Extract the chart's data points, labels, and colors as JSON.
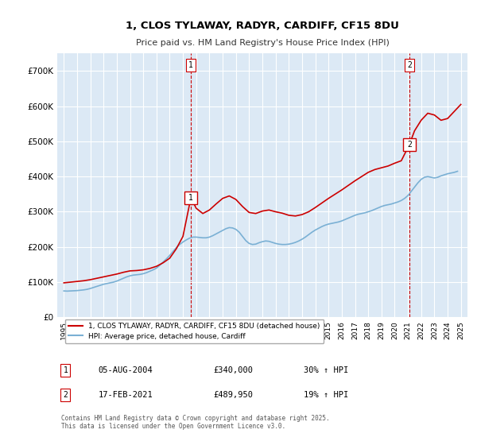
{
  "title": "1, CLOS TYLAWAY, RADYR, CARDIFF, CF15 8DU",
  "subtitle": "Price paid vs. HM Land Registry's House Price Index (HPI)",
  "background_color": "#dce9f5",
  "plot_bg_color": "#dce9f5",
  "red_line_color": "#cc0000",
  "blue_line_color": "#7ab0d4",
  "grid_color": "#ffffff",
  "ylabel_color": "#333333",
  "ylim": [
    0,
    750000
  ],
  "yticks": [
    0,
    100000,
    200000,
    300000,
    400000,
    500000,
    600000,
    700000
  ],
  "ytick_labels": [
    "£0",
    "£100K",
    "£200K",
    "£300K",
    "£400K",
    "£500K",
    "£600K",
    "£700K"
  ],
  "xlim_start": 1994.5,
  "xlim_end": 2025.5,
  "xticks": [
    1995,
    1996,
    1997,
    1998,
    1999,
    2000,
    2001,
    2002,
    2003,
    2004,
    2005,
    2006,
    2007,
    2008,
    2009,
    2010,
    2011,
    2012,
    2013,
    2014,
    2015,
    2016,
    2017,
    2018,
    2019,
    2020,
    2021,
    2022,
    2023,
    2024,
    2025
  ],
  "sale1_x": 2004.6,
  "sale1_y": 340000,
  "sale1_label": "1",
  "sale2_x": 2021.1,
  "sale2_y": 489950,
  "sale2_label": "2",
  "legend_line1": "1, CLOS TYLAWAY, RADYR, CARDIFF, CF15 8DU (detached house)",
  "legend_line2": "HPI: Average price, detached house, Cardiff",
  "table_rows": [
    [
      "1",
      "05-AUG-2004",
      "£340,000",
      "30% ↑ HPI"
    ],
    [
      "2",
      "17-FEB-2021",
      "£489,950",
      "19% ↑ HPI"
    ]
  ],
  "footer": "Contains HM Land Registry data © Crown copyright and database right 2025.\nThis data is licensed under the Open Government Licence v3.0.",
  "hpi_data": {
    "years": [
      1995,
      1995.25,
      1995.5,
      1995.75,
      1996,
      1996.25,
      1996.5,
      1996.75,
      1997,
      1997.25,
      1997.5,
      1997.75,
      1998,
      1998.25,
      1998.5,
      1998.75,
      1999,
      1999.25,
      1999.5,
      1999.75,
      2000,
      2000.25,
      2000.5,
      2000.75,
      2001,
      2001.25,
      2001.5,
      2001.75,
      2002,
      2002.25,
      2002.5,
      2002.75,
      2003,
      2003.25,
      2003.5,
      2003.75,
      2004,
      2004.25,
      2004.5,
      2004.75,
      2005,
      2005.25,
      2005.5,
      2005.75,
      2006,
      2006.25,
      2006.5,
      2006.75,
      2007,
      2007.25,
      2007.5,
      2007.75,
      2008,
      2008.25,
      2008.5,
      2008.75,
      2009,
      2009.25,
      2009.5,
      2009.75,
      2010,
      2010.25,
      2010.5,
      2010.75,
      2011,
      2011.25,
      2011.5,
      2011.75,
      2012,
      2012.25,
      2012.5,
      2012.75,
      2013,
      2013.25,
      2013.5,
      2013.75,
      2014,
      2014.25,
      2014.5,
      2014.75,
      2015,
      2015.25,
      2015.5,
      2015.75,
      2016,
      2016.25,
      2016.5,
      2016.75,
      2017,
      2017.25,
      2017.5,
      2017.75,
      2018,
      2018.25,
      2018.5,
      2018.75,
      2019,
      2019.25,
      2019.5,
      2019.75,
      2020,
      2020.25,
      2020.5,
      2020.75,
      2021,
      2021.25,
      2021.5,
      2021.75,
      2022,
      2022.25,
      2022.5,
      2022.75,
      2023,
      2023.25,
      2023.5,
      2023.75,
      2024,
      2024.25,
      2024.5,
      2024.75
    ],
    "values": [
      75000,
      74500,
      75000,
      75500,
      76000,
      77000,
      78000,
      79500,
      82000,
      85000,
      88000,
      91000,
      94000,
      96000,
      98000,
      100000,
      103000,
      107000,
      111000,
      115000,
      118000,
      120000,
      121000,
      122000,
      124000,
      127000,
      131000,
      135000,
      140000,
      148000,
      157000,
      166000,
      176000,
      187000,
      198000,
      207000,
      214000,
      220000,
      225000,
      228000,
      228000,
      227000,
      226000,
      226000,
      228000,
      232000,
      237000,
      242000,
      247000,
      252000,
      255000,
      254000,
      250000,
      242000,
      230000,
      218000,
      210000,
      207000,
      208000,
      212000,
      215000,
      217000,
      216000,
      213000,
      210000,
      208000,
      207000,
      207000,
      208000,
      210000,
      213000,
      217000,
      222000,
      228000,
      235000,
      242000,
      248000,
      253000,
      258000,
      262000,
      265000,
      267000,
      269000,
      271000,
      274000,
      278000,
      282000,
      286000,
      290000,
      293000,
      295000,
      297000,
      300000,
      303000,
      307000,
      311000,
      315000,
      318000,
      320000,
      322000,
      325000,
      328000,
      332000,
      338000,
      346000,
      358000,
      370000,
      382000,
      392000,
      398000,
      400000,
      398000,
      396000,
      398000,
      402000,
      405000,
      408000,
      410000,
      412000,
      415000
    ]
  },
  "price_data": {
    "years": [
      1995,
      1995.5,
      1996,
      1996.5,
      1997,
      1997.5,
      1998,
      1998.5,
      1999,
      1999.5,
      2000,
      2000.5,
      2001,
      2001.5,
      2002,
      2002.5,
      2003,
      2003.5,
      2004,
      2004.6,
      2005,
      2005.5,
      2006,
      2006.5,
      2007,
      2007.5,
      2008,
      2008.5,
      2009,
      2009.5,
      2010,
      2010.5,
      2011,
      2011.5,
      2012,
      2012.5,
      2013,
      2013.5,
      2014,
      2014.5,
      2015,
      2015.5,
      2016,
      2016.5,
      2017,
      2017.5,
      2018,
      2018.5,
      2019,
      2019.5,
      2020,
      2020.5,
      2021.1,
      2021.5,
      2022,
      2022.5,
      2023,
      2023.5,
      2024,
      2024.5,
      2025
    ],
    "values": [
      98000,
      100000,
      102000,
      104000,
      107000,
      111000,
      115000,
      119000,
      123000,
      128000,
      132000,
      133000,
      135000,
      139000,
      145000,
      155000,
      168000,
      195000,
      230000,
      340000,
      310000,
      295000,
      305000,
      322000,
      338000,
      345000,
      335000,
      315000,
      298000,
      295000,
      302000,
      305000,
      300000,
      296000,
      290000,
      288000,
      292000,
      300000,
      312000,
      325000,
      338000,
      350000,
      362000,
      375000,
      388000,
      400000,
      412000,
      420000,
      425000,
      430000,
      438000,
      445000,
      489950,
      530000,
      560000,
      580000,
      575000,
      560000,
      565000,
      585000,
      605000
    ]
  }
}
